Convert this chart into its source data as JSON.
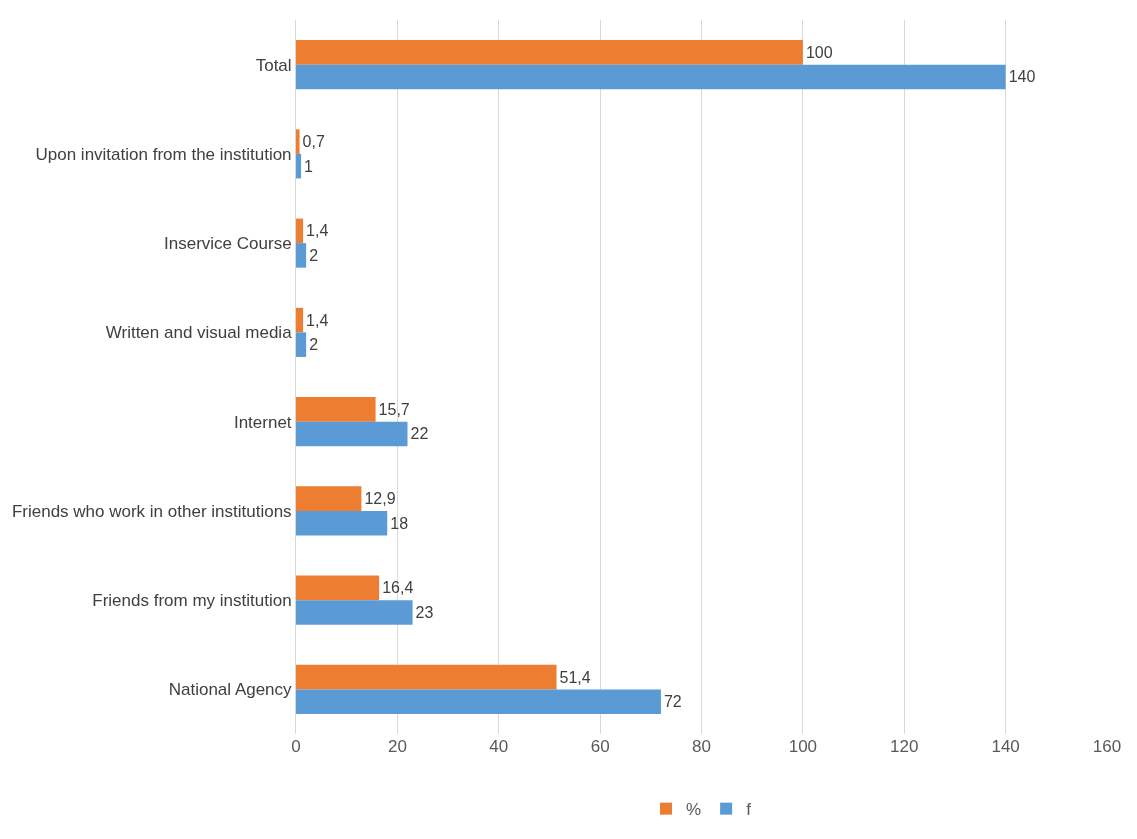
{
  "chart_data": {
    "type": "bar",
    "orientation": "horizontal",
    "categories": [
      "Total",
      "Upon invitation from the institution",
      "Inservice Course",
      "Written and visual media",
      "Internet",
      "Friends who work in other institutions",
      "Friends from my institution",
      "National Agency"
    ],
    "series": [
      {
        "name": "%",
        "color": "#ed7d31",
        "values": [
          100,
          0.7,
          1.4,
          1.4,
          15.7,
          12.9,
          16.4,
          51.4
        ],
        "value_labels": [
          "100",
          "0,7",
          "1,4",
          "1,4",
          "15,7",
          "12,9",
          "16,4",
          "51,4"
        ]
      },
      {
        "name": "f",
        "color": "#5b9bd5",
        "values": [
          140,
          1,
          2,
          2,
          22,
          18,
          23,
          72
        ],
        "value_labels": [
          "140",
          "1",
          "2",
          "2",
          "22",
          "18",
          "23",
          "72"
        ]
      }
    ],
    "xlim": [
      0,
      160
    ],
    "xticks": [
      0,
      20,
      40,
      60,
      80,
      100,
      120,
      140,
      160
    ],
    "grid": "x",
    "legend": "bottom"
  }
}
